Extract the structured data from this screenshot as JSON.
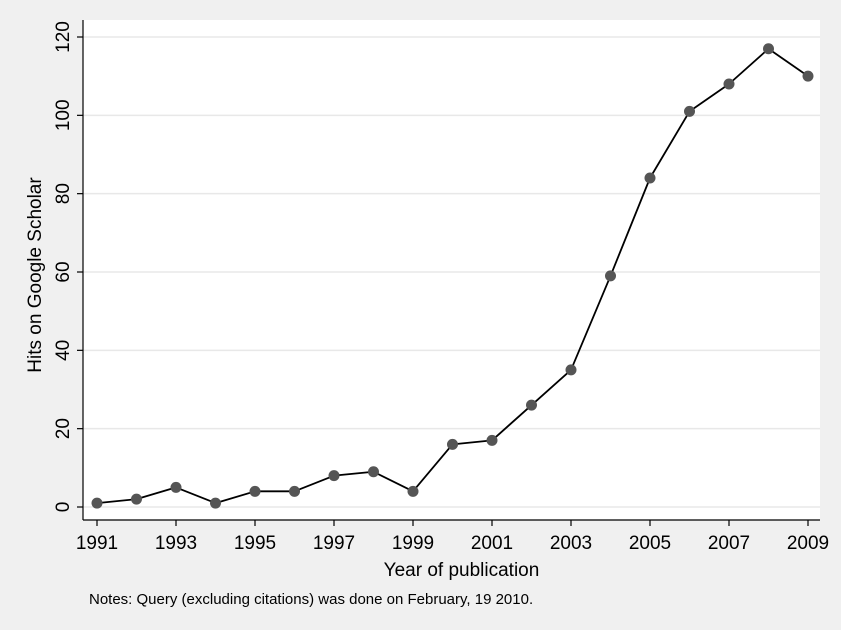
{
  "chart_data": {
    "type": "line",
    "title": "",
    "xlabel": "Year of publication",
    "ylabel": "Hits on Google Scholar",
    "note": "Notes: Query (excluding citations) was done on February, 19 2010.",
    "x": [
      1991,
      1992,
      1993,
      1994,
      1995,
      1996,
      1997,
      1998,
      1999,
      2000,
      2001,
      2002,
      2003,
      2004,
      2005,
      2006,
      2007,
      2008,
      2009
    ],
    "series": [
      {
        "name": "",
        "values": [
          1,
          2,
          5,
          1,
          4,
          4,
          8,
          9,
          4,
          16,
          17,
          26,
          35,
          59,
          84,
          101,
          108,
          117,
          110
        ]
      }
    ],
    "xlim": [
      1991,
      2009
    ],
    "ylim": [
      0,
      120
    ],
    "x_tick_labels": [
      "1991",
      "1993",
      "1995",
      "1997",
      "1999",
      "2001",
      "2003",
      "2005",
      "2007",
      "2009"
    ],
    "y_tick_labels": [
      "0",
      "20",
      "40",
      "60",
      "80",
      "100",
      "120"
    ],
    "grid": true,
    "legend": "none",
    "colors": {
      "background": "#f0f0f0",
      "plot_area": "#ffffff",
      "grid": "#e8e8e8",
      "line": "#000000",
      "marker": "#555555"
    }
  }
}
